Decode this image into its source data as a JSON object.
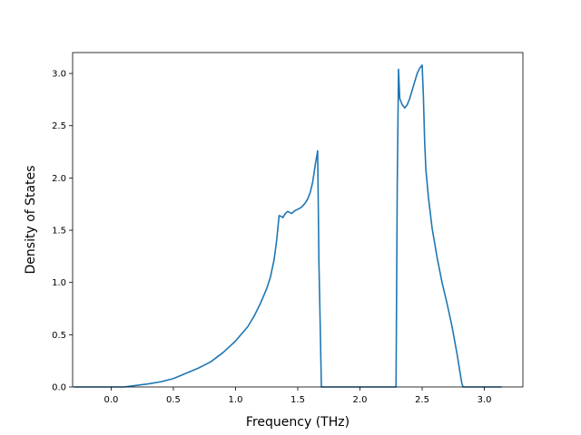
{
  "chart_data": {
    "type": "line",
    "title": "",
    "xlabel": "Frequency (THz)",
    "ylabel": "Density of States",
    "xlim": [
      -0.31,
      3.31
    ],
    "ylim": [
      0.0,
      3.2
    ],
    "xticks": [
      0.0,
      0.5,
      1.0,
      1.5,
      2.0,
      2.5,
      3.0
    ],
    "xtick_labels": [
      "0.0",
      "0.5",
      "1.0",
      "1.5",
      "2.0",
      "2.5",
      "3.0"
    ],
    "yticks": [
      0.0,
      0.5,
      1.0,
      1.5,
      2.0,
      2.5,
      3.0
    ],
    "ytick_labels": [
      "0.0",
      "0.5",
      "1.0",
      "1.5",
      "2.0",
      "2.5",
      "3.0"
    ],
    "grid": false,
    "legend": "none",
    "line_color": "#1f77b4",
    "series": [
      {
        "x": [
          -0.3,
          0.0,
          0.1,
          0.2,
          0.3,
          0.4,
          0.5,
          0.6,
          0.7,
          0.8,
          0.9,
          1.0,
          1.1,
          1.15,
          1.2,
          1.25,
          1.28,
          1.31,
          1.33,
          1.35,
          1.37,
          1.38,
          1.4,
          1.42,
          1.45,
          1.48,
          1.5,
          1.53,
          1.56,
          1.58,
          1.6,
          1.62,
          1.64,
          1.66,
          1.67,
          1.68,
          1.69,
          1.7,
          1.8,
          2.0,
          2.2,
          2.29,
          2.3,
          2.31,
          2.32,
          2.34,
          2.36,
          2.38,
          2.4,
          2.42,
          2.44,
          2.46,
          2.48,
          2.5,
          2.51,
          2.52,
          2.53,
          2.55,
          2.58,
          2.62,
          2.66,
          2.7,
          2.74,
          2.78,
          2.81,
          2.82,
          2.83,
          2.84,
          2.85,
          2.86,
          3.0,
          3.14
        ],
        "y": [
          0.0,
          0.0,
          0.0,
          0.015,
          0.03,
          0.05,
          0.08,
          0.13,
          0.18,
          0.24,
          0.33,
          0.44,
          0.58,
          0.68,
          0.8,
          0.94,
          1.05,
          1.22,
          1.4,
          1.64,
          1.63,
          1.62,
          1.66,
          1.68,
          1.66,
          1.69,
          1.7,
          1.72,
          1.76,
          1.8,
          1.86,
          1.96,
          2.12,
          2.26,
          1.2,
          0.62,
          0.0,
          0.0,
          0.0,
          0.0,
          0.0,
          0.0,
          1.95,
          3.04,
          2.76,
          2.7,
          2.67,
          2.7,
          2.76,
          2.84,
          2.92,
          3.0,
          3.05,
          3.08,
          2.78,
          2.35,
          2.08,
          1.82,
          1.52,
          1.24,
          1.0,
          0.8,
          0.58,
          0.32,
          0.1,
          0.03,
          0.0,
          0.0,
          0.0,
          0.0,
          0.0,
          0.0
        ]
      }
    ]
  }
}
